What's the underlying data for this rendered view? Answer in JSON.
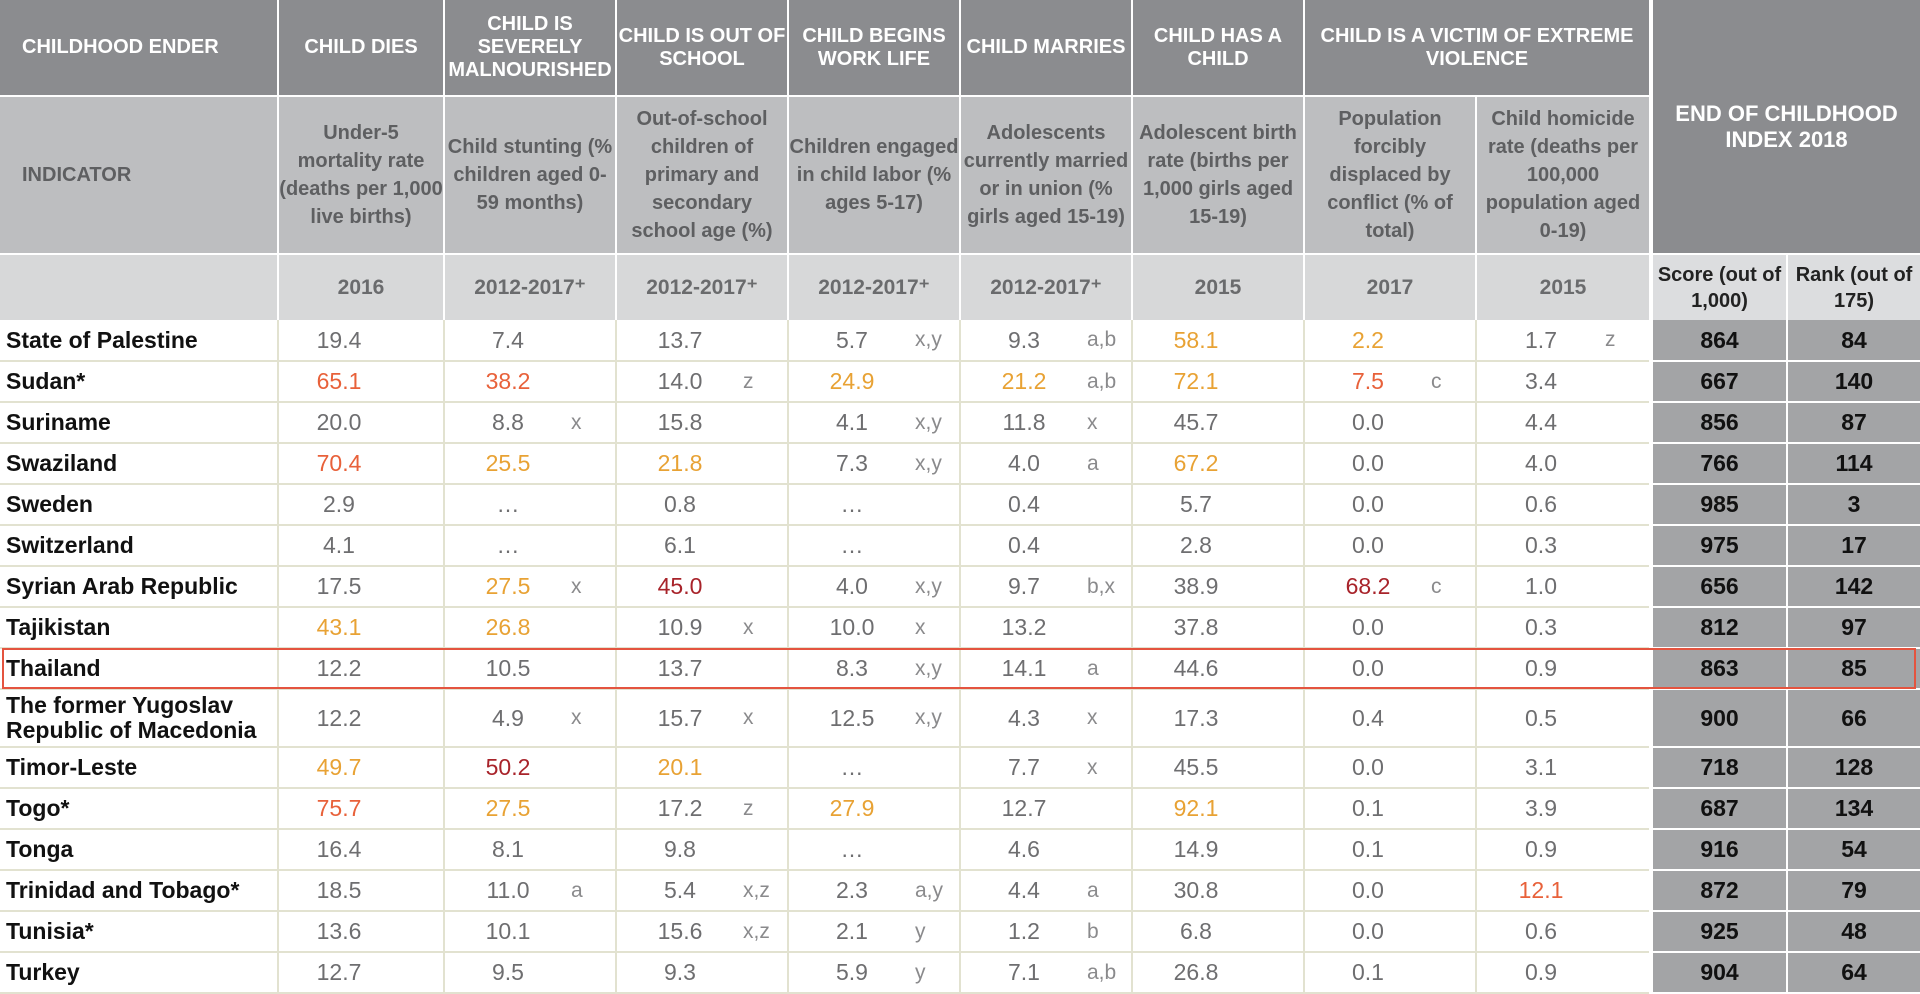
{
  "header": {
    "childhood_ender_label": "CHILDHOOD ENDER",
    "indicator_label": "INDICATOR",
    "enders": [
      "CHILD DIES",
      "CHILD IS SEVERELY MALNOURISHED",
      "CHILD IS OUT OF SCHOOL",
      "CHILD BEGINS WORK LIFE",
      "CHILD MARRIES",
      "CHILD HAS A CHILD",
      "CHILD IS A VICTIM OF EXTREME VIOLENCE"
    ],
    "end_of_childhood_index": "END OF CHILDHOOD INDEX 2018",
    "indicators": [
      "Under-5 mortality rate (deaths per 1,000 live births)",
      "Child stunting (% children aged 0-59 months)",
      "Out-of-school children of primary and secondary school age (%)",
      "Children engaged in child labor (% ages 5-17)",
      "Adolescents currently married or in union (% girls aged 15-19)",
      "Adolescent birth rate (births per 1,000 girls aged 15-19)",
      "Population forcibly displaced by conflict (% of total)",
      "Child homicide rate (deaths per 100,000 population aged 0-19)"
    ],
    "years": [
      "2016",
      "2012-2017⁺",
      "2012-2017⁺",
      "2012-2017⁺",
      "2012-2017⁺",
      "2015",
      "2017",
      "2015"
    ],
    "score_label": "Score (out of 1,000)",
    "rank_label": "Rank (out of 175)"
  },
  "colors": {
    "header_dark": "#8b8c8f",
    "header_mid": "#bdbec0",
    "header_light": "#d7d8d9",
    "score_bg": "#a3a4a6",
    "yellow": "#e8a234",
    "orange": "#e8613a",
    "red": "#a8232a",
    "highlight_border": "#e4543f"
  },
  "highlighted_country": "Thailand",
  "rows": [
    {
      "country": "State of Palestine",
      "cells": [
        {
          "v": "19.4"
        },
        {
          "v": "7.4"
        },
        {
          "v": "13.7"
        },
        {
          "v": "5.7",
          "n": "x,y"
        },
        {
          "v": "9.3",
          "n": "a,b"
        },
        {
          "v": "58.1",
          "c": "yellow"
        },
        {
          "v": "2.2",
          "c": "yellow"
        },
        {
          "v": "1.7",
          "n": "z"
        }
      ],
      "score": "864",
      "rank": "84"
    },
    {
      "country": "Sudan*",
      "cells": [
        {
          "v": "65.1",
          "c": "orange"
        },
        {
          "v": "38.2",
          "c": "orange"
        },
        {
          "v": "14.0",
          "n": "z"
        },
        {
          "v": "24.9",
          "c": "yellow"
        },
        {
          "v": "21.2",
          "n": "a,b",
          "c": "yellow"
        },
        {
          "v": "72.1",
          "c": "yellow"
        },
        {
          "v": "7.5",
          "n": "c",
          "c": "orange"
        },
        {
          "v": "3.4"
        }
      ],
      "score": "667",
      "rank": "140"
    },
    {
      "country": "Suriname",
      "cells": [
        {
          "v": "20.0"
        },
        {
          "v": "8.8",
          "n": "x"
        },
        {
          "v": "15.8"
        },
        {
          "v": "4.1",
          "n": "x,y"
        },
        {
          "v": "11.8",
          "n": "x"
        },
        {
          "v": "45.7"
        },
        {
          "v": "0.0"
        },
        {
          "v": "4.4"
        }
      ],
      "score": "856",
      "rank": "87"
    },
    {
      "country": "Swaziland",
      "cells": [
        {
          "v": "70.4",
          "c": "orange"
        },
        {
          "v": "25.5",
          "c": "yellow"
        },
        {
          "v": "21.8",
          "c": "yellow"
        },
        {
          "v": "7.3",
          "n": "x,y"
        },
        {
          "v": "4.0",
          "n": "a"
        },
        {
          "v": "67.2",
          "c": "yellow"
        },
        {
          "v": "0.0"
        },
        {
          "v": "4.0"
        }
      ],
      "score": "766",
      "rank": "114"
    },
    {
      "country": "Sweden",
      "cells": [
        {
          "v": "2.9"
        },
        {
          "v": "…"
        },
        {
          "v": "0.8"
        },
        {
          "v": "…"
        },
        {
          "v": "0.4"
        },
        {
          "v": "5.7"
        },
        {
          "v": "0.0"
        },
        {
          "v": "0.6"
        }
      ],
      "score": "985",
      "rank": "3"
    },
    {
      "country": "Switzerland",
      "cells": [
        {
          "v": "4.1"
        },
        {
          "v": "…"
        },
        {
          "v": "6.1"
        },
        {
          "v": "…"
        },
        {
          "v": "0.4"
        },
        {
          "v": "2.8"
        },
        {
          "v": "0.0"
        },
        {
          "v": "0.3"
        }
      ],
      "score": "975",
      "rank": "17"
    },
    {
      "country": "Syrian Arab Republic",
      "cells": [
        {
          "v": "17.5"
        },
        {
          "v": "27.5",
          "n": "x",
          "c": "yellow"
        },
        {
          "v": "45.0",
          "c": "red"
        },
        {
          "v": "4.0",
          "n": "x,y"
        },
        {
          "v": "9.7",
          "n": "b,x"
        },
        {
          "v": "38.9"
        },
        {
          "v": "68.2",
          "n": "c",
          "c": "red"
        },
        {
          "v": "1.0"
        }
      ],
      "score": "656",
      "rank": "142"
    },
    {
      "country": "Tajikistan",
      "cells": [
        {
          "v": "43.1",
          "c": "yellow"
        },
        {
          "v": "26.8",
          "c": "yellow"
        },
        {
          "v": "10.9",
          "n": "x"
        },
        {
          "v": "10.0",
          "n": "x"
        },
        {
          "v": "13.2"
        },
        {
          "v": "37.8"
        },
        {
          "v": "0.0"
        },
        {
          "v": "0.3"
        }
      ],
      "score": "812",
      "rank": "97"
    },
    {
      "country": "Thailand",
      "cells": [
        {
          "v": "12.2"
        },
        {
          "v": "10.5"
        },
        {
          "v": "13.7"
        },
        {
          "v": "8.3",
          "n": "x,y"
        },
        {
          "v": "14.1",
          "n": "a"
        },
        {
          "v": "44.6"
        },
        {
          "v": "0.0"
        },
        {
          "v": "0.9"
        }
      ],
      "score": "863",
      "rank": "85"
    },
    {
      "country": "The former Yugoslav Republic of Macedonia",
      "tall": true,
      "cells": [
        {
          "v": "12.2"
        },
        {
          "v": "4.9",
          "n": "x"
        },
        {
          "v": "15.7",
          "n": "x"
        },
        {
          "v": "12.5",
          "n": "x,y"
        },
        {
          "v": "4.3",
          "n": "x"
        },
        {
          "v": "17.3"
        },
        {
          "v": "0.4"
        },
        {
          "v": "0.5"
        }
      ],
      "score": "900",
      "rank": "66"
    },
    {
      "country": "Timor-Leste",
      "cells": [
        {
          "v": "49.7",
          "c": "yellow"
        },
        {
          "v": "50.2",
          "c": "red"
        },
        {
          "v": "20.1",
          "c": "yellow"
        },
        {
          "v": "…"
        },
        {
          "v": "7.7",
          "n": "x"
        },
        {
          "v": "45.5"
        },
        {
          "v": "0.0"
        },
        {
          "v": "3.1"
        }
      ],
      "score": "718",
      "rank": "128"
    },
    {
      "country": "Togo*",
      "cells": [
        {
          "v": "75.7",
          "c": "orange"
        },
        {
          "v": "27.5",
          "c": "yellow"
        },
        {
          "v": "17.2",
          "n": "z"
        },
        {
          "v": "27.9",
          "c": "yellow"
        },
        {
          "v": "12.7"
        },
        {
          "v": "92.1",
          "c": "yellow"
        },
        {
          "v": "0.1"
        },
        {
          "v": "3.9"
        }
      ],
      "score": "687",
      "rank": "134"
    },
    {
      "country": "Tonga",
      "cells": [
        {
          "v": "16.4"
        },
        {
          "v": "8.1"
        },
        {
          "v": "9.8"
        },
        {
          "v": "…"
        },
        {
          "v": "4.6"
        },
        {
          "v": "14.9"
        },
        {
          "v": "0.1"
        },
        {
          "v": "0.9"
        }
      ],
      "score": "916",
      "rank": "54"
    },
    {
      "country": "Trinidad and Tobago*",
      "cells": [
        {
          "v": "18.5"
        },
        {
          "v": "11.0",
          "n": "a"
        },
        {
          "v": "5.4",
          "n": "x,z"
        },
        {
          "v": "2.3",
          "n": "a,y"
        },
        {
          "v": "4.4",
          "n": "a"
        },
        {
          "v": "30.8"
        },
        {
          "v": "0.0"
        },
        {
          "v": "12.1",
          "c": "orange"
        }
      ],
      "score": "872",
      "rank": "79"
    },
    {
      "country": "Tunisia*",
      "cells": [
        {
          "v": "13.6"
        },
        {
          "v": "10.1"
        },
        {
          "v": "15.6",
          "n": "x,z"
        },
        {
          "v": "2.1",
          "n": "y"
        },
        {
          "v": "1.2",
          "n": "b"
        },
        {
          "v": "6.8"
        },
        {
          "v": "0.0"
        },
        {
          "v": "0.6"
        }
      ],
      "score": "925",
      "rank": "48"
    },
    {
      "country": "Turkey",
      "cells": [
        {
          "v": "12.7"
        },
        {
          "v": "9.5"
        },
        {
          "v": "9.3"
        },
        {
          "v": "5.9",
          "n": "y"
        },
        {
          "v": "7.1",
          "n": "a,b"
        },
        {
          "v": "26.8"
        },
        {
          "v": "0.1"
        },
        {
          "v": "0.9"
        }
      ],
      "score": "904",
      "rank": "64"
    }
  ]
}
